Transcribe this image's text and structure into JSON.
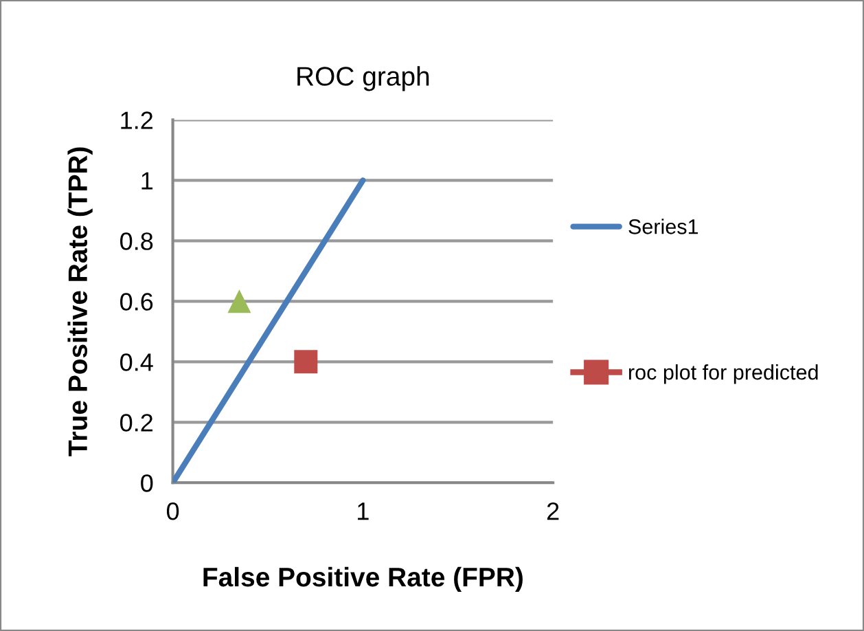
{
  "chart_data": {
    "type": "scatter",
    "title": "ROC graph",
    "xlabel": "False Positive Rate (FPR)",
    "ylabel": "True Positive Rate (TPR)",
    "series": [
      {
        "name": "Series1",
        "type": "line",
        "color": "#4a7ebb",
        "x": [
          0,
          1
        ],
        "values": [
          0,
          1
        ],
        "marker": "none",
        "line_style": "solid"
      },
      {
        "name": "roc plot for predicted",
        "type": "scatter",
        "color": "#be4b48",
        "x": [
          0.7
        ],
        "values": [
          0.4
        ],
        "marker": "square"
      },
      {
        "type": "scatter",
        "color": "#9bbb59",
        "x": [
          0.35
        ],
        "values": [
          0.6
        ],
        "marker": "triangle"
      }
    ],
    "xlim": [
      0,
      2
    ],
    "xticks": [
      0,
      1,
      2
    ],
    "ylim": [
      0,
      1.2
    ],
    "yticks": [
      0,
      0.2,
      0.4,
      0.6,
      0.8,
      1,
      1.2
    ],
    "grid": "y",
    "legend": "right"
  }
}
